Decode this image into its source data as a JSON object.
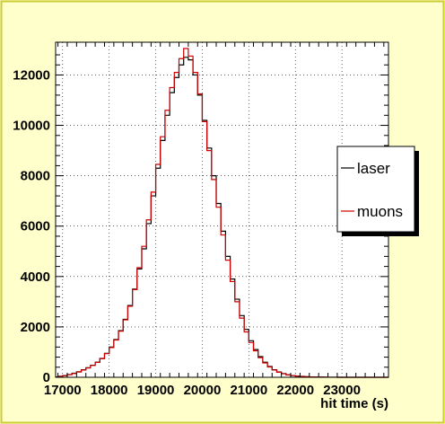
{
  "chart_data": {
    "type": "line",
    "xlabel": "hit time (s)",
    "ylabel": "",
    "xlim": [
      16850,
      24000
    ],
    "ylim": [
      0,
      13300
    ],
    "x_ticks": [
      17000,
      18000,
      19000,
      20000,
      21000,
      22000,
      23000
    ],
    "y_ticks": [
      0,
      2000,
      4000,
      6000,
      8000,
      10000,
      12000
    ],
    "grid": true,
    "legend_placement": "right",
    "bin_width": 100,
    "x": [
      16850,
      16950,
      17050,
      17150,
      17250,
      17350,
      17450,
      17550,
      17650,
      17750,
      17850,
      17950,
      18050,
      18150,
      18250,
      18350,
      18450,
      18550,
      18650,
      18750,
      18850,
      18950,
      19050,
      19150,
      19250,
      19350,
      19450,
      19550,
      19650,
      19750,
      19850,
      19950,
      20050,
      20150,
      20250,
      20350,
      20450,
      20550,
      20650,
      20750,
      20850,
      20950,
      21050,
      21150,
      21250,
      21350,
      21450,
      21550,
      21650,
      21750,
      21850,
      21950,
      22050,
      22150,
      22250,
      22350,
      22450,
      22550,
      22650,
      22750,
      22850,
      22950,
      23050,
      23150,
      23250,
      23350,
      23450,
      23550,
      23650,
      23750,
      23850,
      23950
    ],
    "series": [
      {
        "name": "laser",
        "color": "#000000",
        "values": [
          20,
          40,
          70,
          110,
          160,
          220,
          300,
          380,
          480,
          600,
          750,
          950,
          1200,
          1500,
          1850,
          2300,
          2850,
          3500,
          4300,
          5100,
          6100,
          7200,
          8300,
          9400,
          10400,
          11300,
          11900,
          12400,
          12700,
          12600,
          12000,
          11200,
          10200,
          9100,
          8000,
          6900,
          5800,
          4800,
          3900,
          3100,
          2450,
          1900,
          1450,
          1100,
          820,
          600,
          430,
          300,
          210,
          150,
          100,
          70,
          50,
          35,
          25,
          15,
          10,
          8,
          5,
          3,
          2,
          1,
          1,
          1,
          0,
          0,
          0,
          0,
          0,
          0,
          0,
          0
        ]
      },
      {
        "name": "muons",
        "color": "#cc0000",
        "values": [
          10,
          30,
          60,
          100,
          150,
          210,
          290,
          370,
          470,
          590,
          740,
          940,
          1180,
          1480,
          1830,
          2280,
          2820,
          3480,
          4350,
          5200,
          6250,
          7350,
          8450,
          9550,
          10600,
          11500,
          12100,
          12650,
          13050,
          12750,
          12100,
          11250,
          10150,
          9000,
          7850,
          6750,
          5650,
          4650,
          3800,
          3000,
          2350,
          1800,
          1380,
          1050,
          780,
          570,
          410,
          290,
          200,
          140,
          95,
          65,
          45,
          30,
          20,
          12,
          8,
          6,
          4,
          3,
          2,
          1,
          1,
          0,
          0,
          0,
          0,
          0,
          0,
          0,
          0,
          0
        ]
      }
    ]
  }
}
